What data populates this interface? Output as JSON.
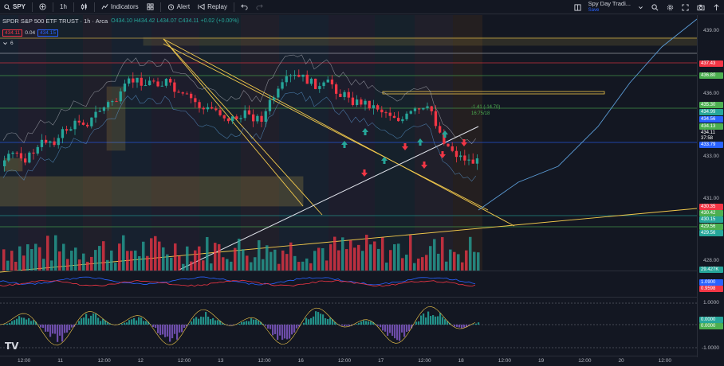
{
  "toolbar": {
    "symbol": "SPY",
    "interval": "1h",
    "indicators_label": "Indicators",
    "alert_label": "Alert",
    "replay_label": "Replay",
    "layout_name": "Spy Day Tradi...",
    "layout_status": "Save"
  },
  "legend": {
    "title": "SPDR S&P 500 ETF TRUST · 1h · Arca",
    "ohlc": "O434.10 H434.42 L434.07 C434.11 +0.02 (+0.00%)",
    "bid": "434.11",
    "spread": "0.04",
    "ask": "434.15",
    "indicator_count": "6"
  },
  "annotations": {
    "measure_line1": "-1.41 (-14.70)",
    "measure_line2": "16:75/18"
  },
  "price_scale": {
    "ticks": [
      "439.00",
      "436.00",
      "433.00",
      "431.00",
      "428.00",
      "1.0000",
      "-1.0000"
    ],
    "tags": [
      {
        "text": "437.43",
        "color": "#f23645"
      },
      {
        "text": "436.80",
        "color": "#4caf50"
      },
      {
        "text": "435.30",
        "color": "#4caf50"
      },
      {
        "text": "434.99",
        "color": "#26a69a"
      },
      {
        "text": "434.56",
        "color": "#2962ff"
      },
      {
        "text": "434.13",
        "color": "#4caf50"
      },
      {
        "text": "434.11",
        "color": "#131722"
      },
      {
        "text": "37:58",
        "color": "#131722"
      },
      {
        "text": "433.79",
        "color": "#2962ff"
      },
      {
        "text": "430.35",
        "color": "#f23645"
      },
      {
        "text": "430.42",
        "color": "#4caf50"
      },
      {
        "text": "430.15",
        "color": "#26a69a"
      },
      {
        "text": "429.56",
        "color": "#4caf50"
      },
      {
        "text": "429.56",
        "color": "#26a69a"
      },
      {
        "text": "29.427K",
        "color": "#26a69a"
      },
      {
        "text": "1.0900",
        "color": "#2962ff"
      },
      {
        "text": "0.9598",
        "color": "#f23645"
      },
      {
        "text": "0.0000",
        "color": "#26a69a"
      },
      {
        "text": "0.0000",
        "color": "#4caf50"
      }
    ]
  },
  "time_scale": {
    "labels": [
      "12:00",
      "11",
      "12:00",
      "12",
      "12:00",
      "13",
      "12:00",
      "16",
      "12:00",
      "17",
      "12:00",
      "18",
      "12:00",
      "19",
      "12:00",
      "20",
      "12:00"
    ]
  },
  "colors": {
    "background": "#131722",
    "up": "#26a69a",
    "down": "#f23645",
    "accent": "#2962ff"
  }
}
